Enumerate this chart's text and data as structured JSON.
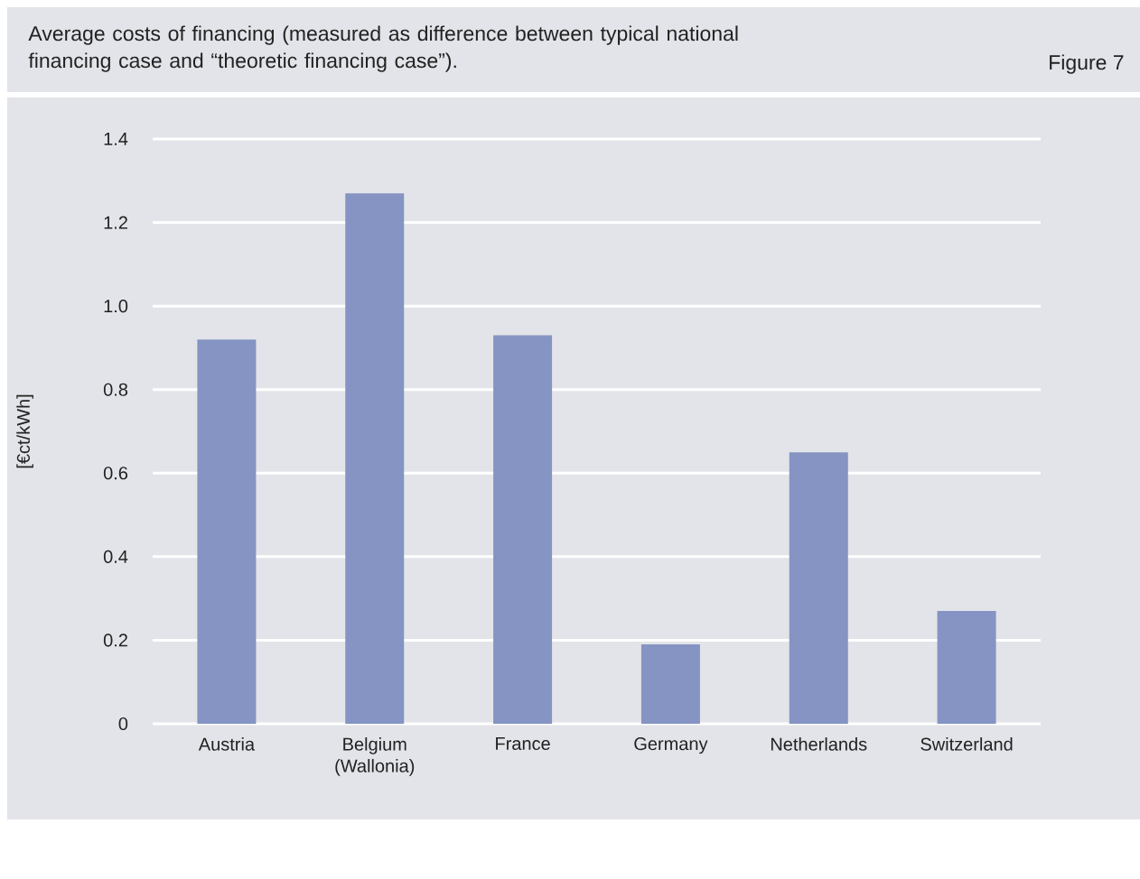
{
  "chart_data": {
    "type": "bar",
    "title": "Average costs of financing (measured as difference between typical national financing case and “theoretic financing case”).",
    "annotations": [
      "Figure 7"
    ],
    "ylabel": "[€ct/kWh]",
    "categories": [
      "Austria",
      "Belgium (Wallonia)",
      "France",
      "Germany",
      "Netherlands",
      "Switzerland"
    ],
    "values": [
      0.92,
      1.27,
      0.93,
      0.19,
      0.65,
      0.27
    ],
    "color": "#8594c2",
    "ylim": [
      0,
      1.4
    ],
    "yticks": [
      0,
      0.2,
      0.4,
      0.6,
      0.8,
      {
        "value": 1,
        "label": "1.0"
      },
      1.2,
      1.4
    ],
    "grid": "y"
  }
}
